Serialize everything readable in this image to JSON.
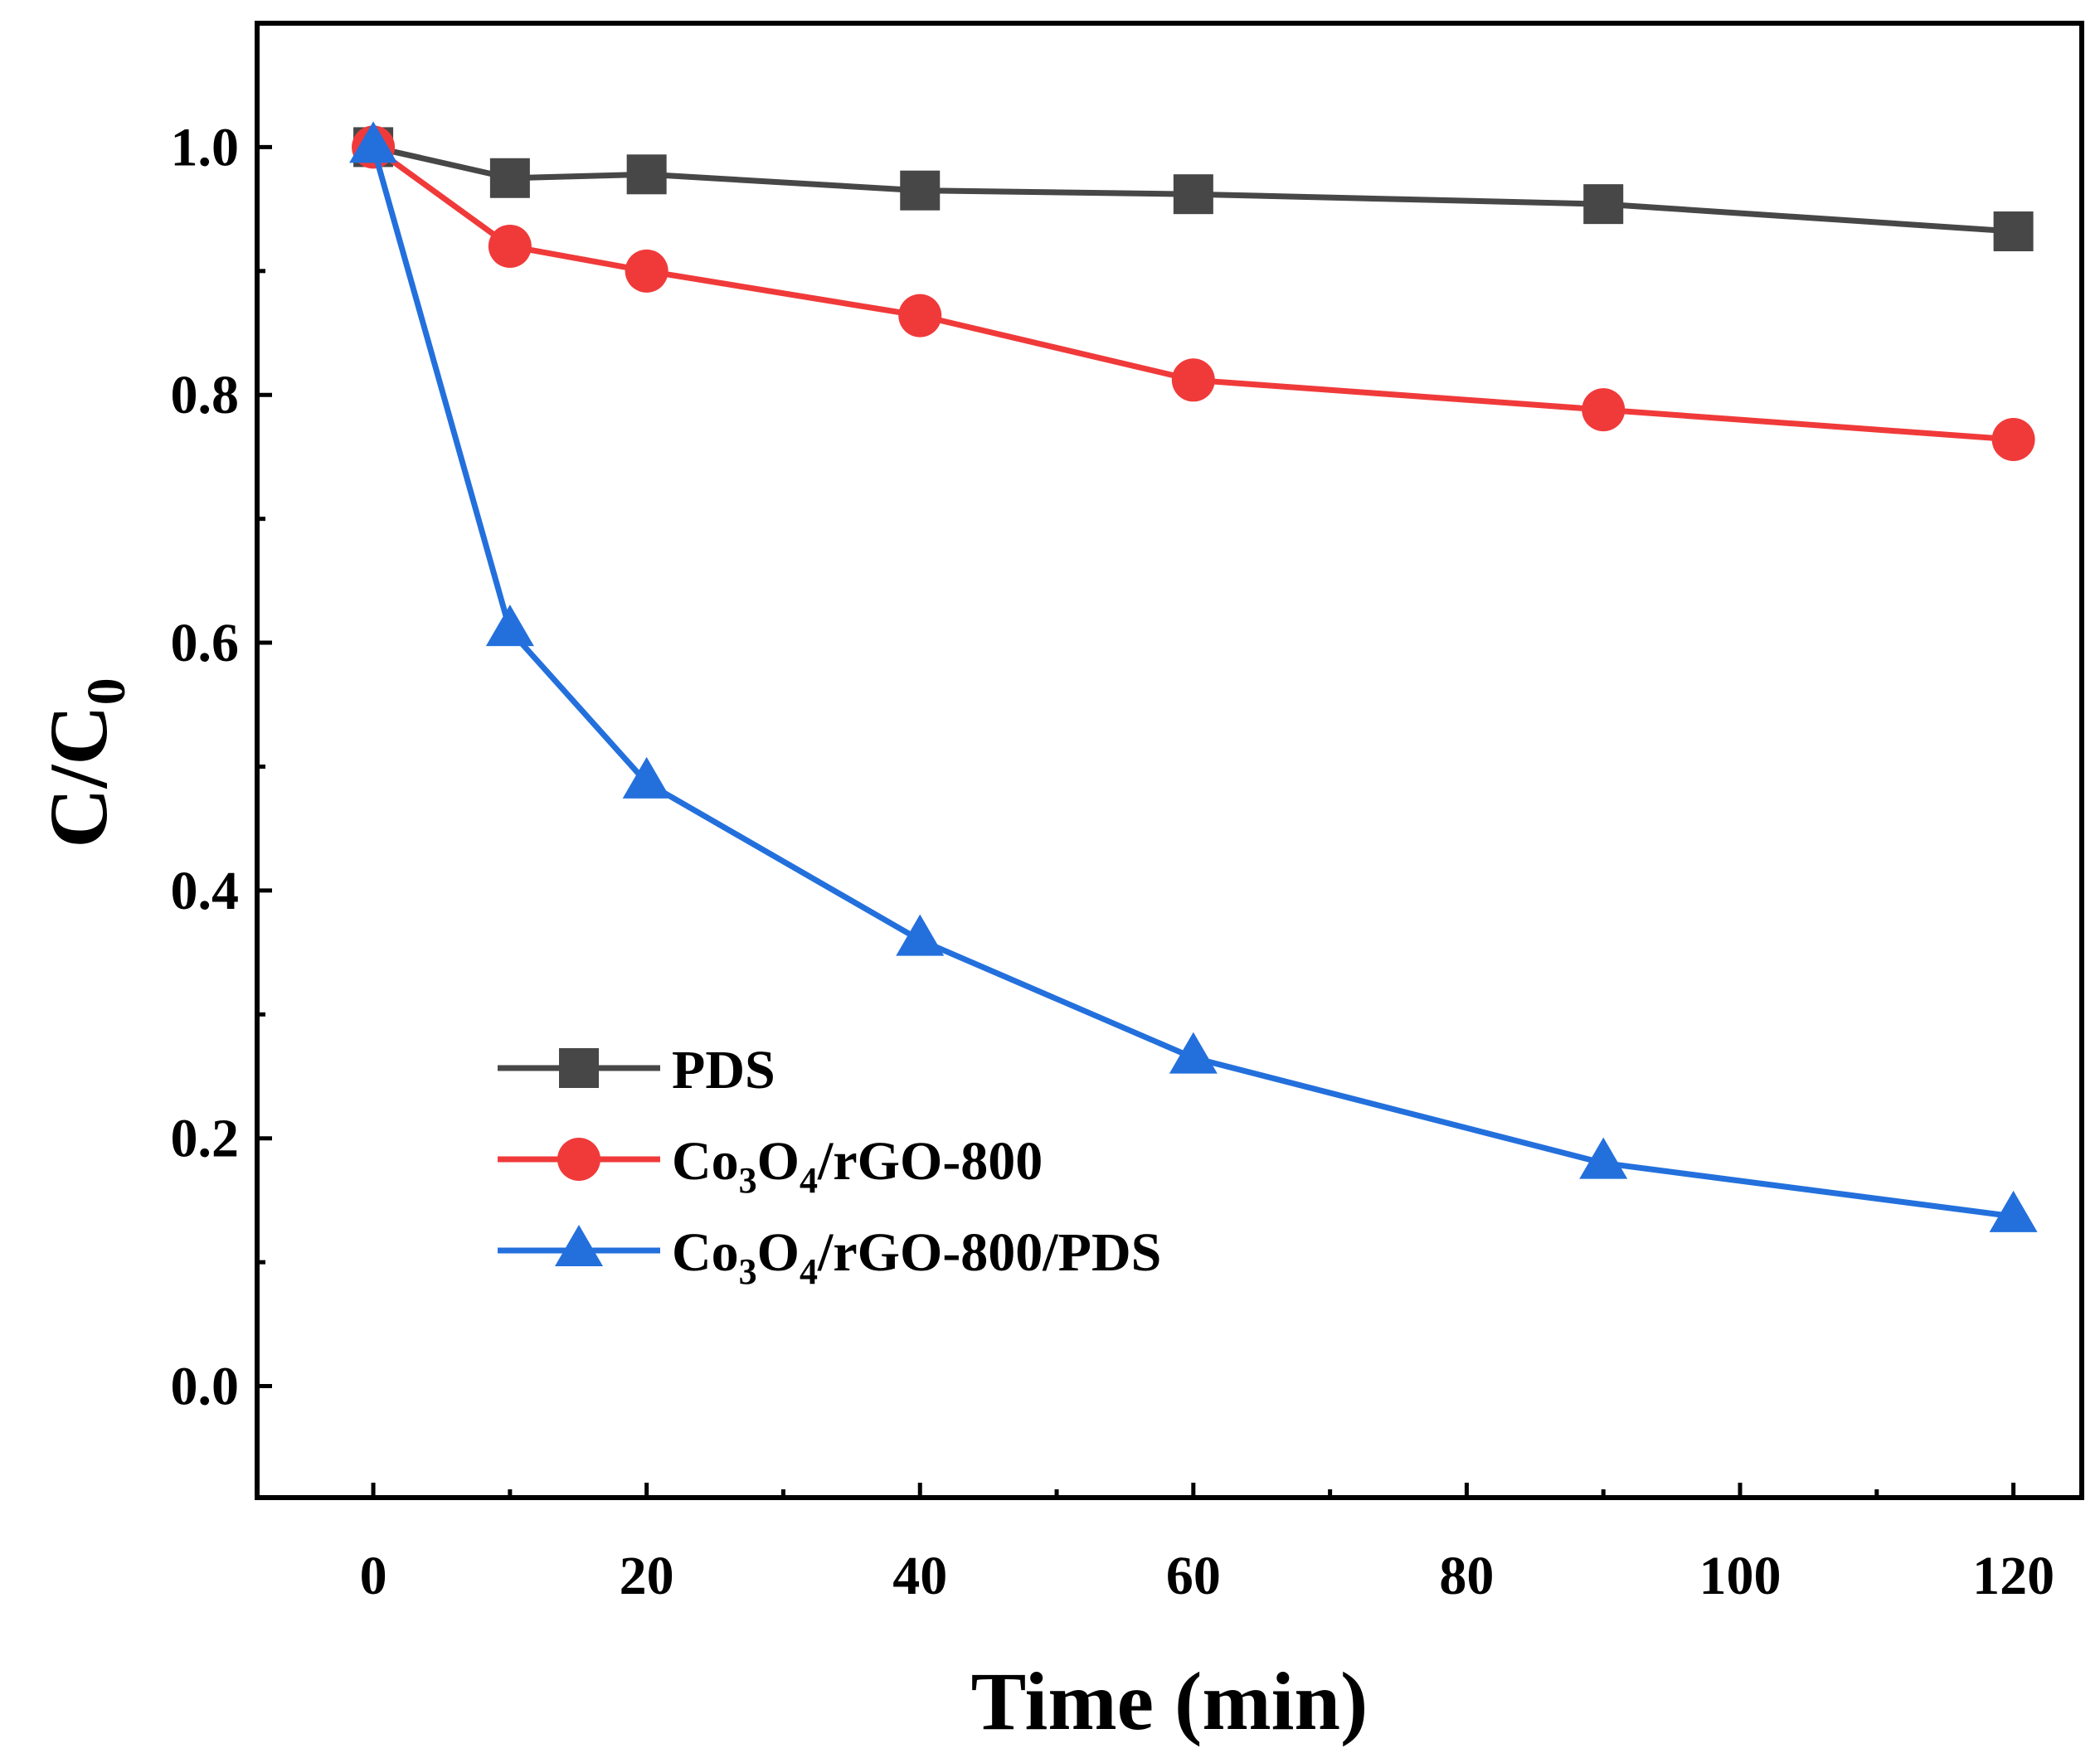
{
  "chart_data": {
    "type": "line",
    "xlabel": "Time (min)",
    "ylabel": {
      "main": "C/C",
      "sub": "0"
    },
    "xlim": [
      -8.5,
      125
    ],
    "ylim": [
      -0.09,
      1.1
    ],
    "x_ticks": [
      "0",
      "20",
      "40",
      "60",
      "80",
      "100",
      "120"
    ],
    "y_ticks": [
      "0.0",
      "0.2",
      "0.4",
      "0.6",
      "0.8",
      "1.0"
    ],
    "x": [
      0,
      10,
      20,
      40,
      60,
      90,
      120
    ],
    "series": [
      {
        "name": "PDS",
        "label_parts": [
          {
            "t": "PDS"
          }
        ],
        "color": "#474747",
        "marker": "square",
        "values": [
          1.0,
          0.975,
          0.978,
          0.965,
          0.962,
          0.954,
          0.932
        ]
      },
      {
        "name": "Co3O4/rGO-800",
        "label_parts": [
          {
            "t": "Co"
          },
          {
            "t": "3",
            "sub": true
          },
          {
            "t": "O"
          },
          {
            "t": "4",
            "sub": true
          },
          {
            "t": "/rGO-800"
          }
        ],
        "color": "#f03a3a",
        "marker": "circle",
        "values": [
          1.0,
          0.92,
          0.9,
          0.864,
          0.812,
          0.788,
          0.764
        ]
      },
      {
        "name": "Co3O4/rGO-800/PDS",
        "label_parts": [
          {
            "t": "Co"
          },
          {
            "t": "3",
            "sub": true
          },
          {
            "t": "O"
          },
          {
            "t": "4",
            "sub": true
          },
          {
            "t": "/rGO-800/PDS"
          }
        ],
        "color": "#2370dd",
        "marker": "triangle",
        "values": [
          1.0,
          0.61,
          0.487,
          0.36,
          0.265,
          0.18,
          0.137
        ]
      }
    ],
    "legend": {
      "position": "lower-left"
    }
  }
}
